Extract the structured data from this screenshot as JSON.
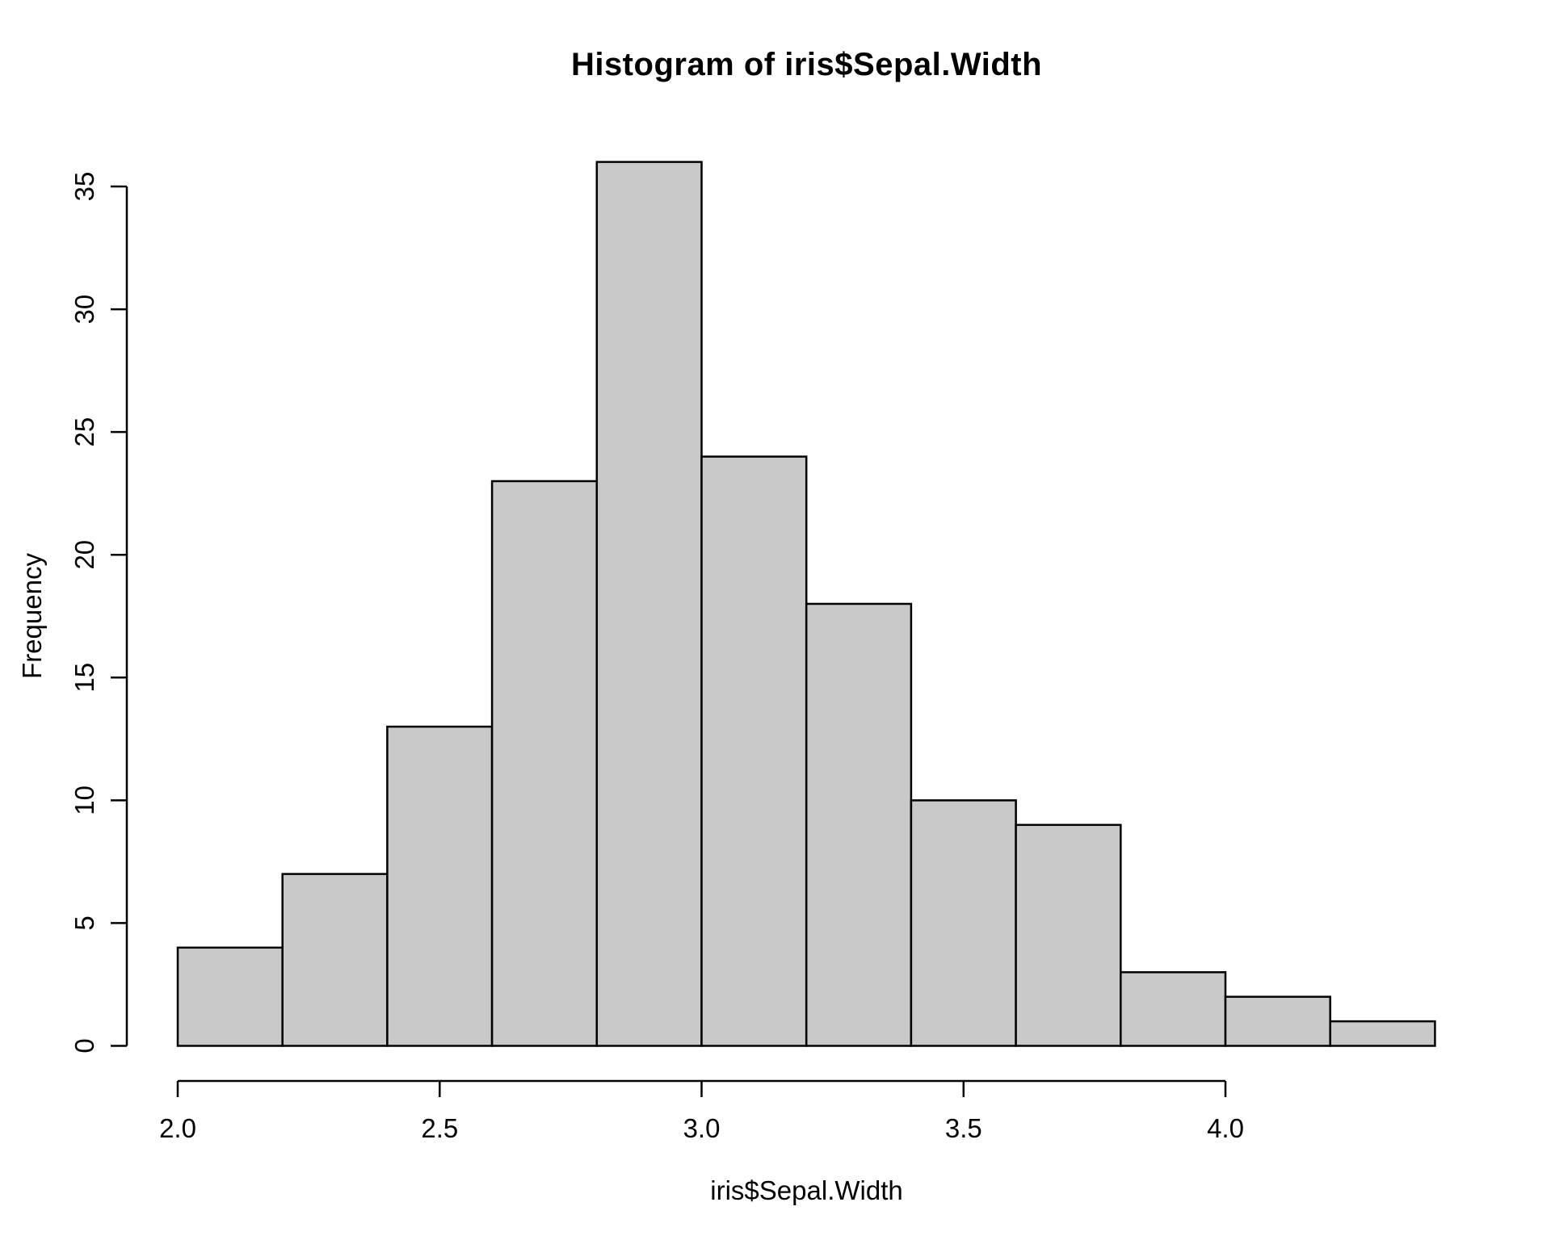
{
  "page": {
    "background": "#ffffff"
  },
  "chart_data": {
    "type": "bar",
    "subtype": "histogram",
    "title": "Histogram of iris$Sepal.Width",
    "xlabel": "iris$Sepal.Width",
    "ylabel": "Frequency",
    "bin_edges": [
      2.0,
      2.2,
      2.4,
      2.6,
      2.8,
      3.0,
      3.2,
      3.4,
      3.6,
      3.8,
      4.0,
      4.2,
      4.4
    ],
    "counts": [
      4,
      7,
      13,
      23,
      36,
      24,
      18,
      10,
      9,
      3,
      2,
      1
    ],
    "xlim": [
      2.0,
      4.4
    ],
    "ylim": [
      0,
      36
    ],
    "x_ticks": [
      "2.0",
      "2.5",
      "3.0",
      "3.5",
      "4.0"
    ],
    "x_tick_values": [
      2.0,
      2.5,
      3.0,
      3.5,
      4.0
    ],
    "y_ticks": [
      "0",
      "5",
      "10",
      "15",
      "20",
      "25",
      "30",
      "35"
    ],
    "y_tick_values": [
      0,
      5,
      10,
      15,
      20,
      25,
      30,
      35
    ],
    "grid": false,
    "legend": null,
    "colors": {
      "bar_fill": "#c9c9c9",
      "bar_border": "#000000",
      "axis": "#000000",
      "text": "#000000",
      "background": "#ffffff"
    }
  }
}
